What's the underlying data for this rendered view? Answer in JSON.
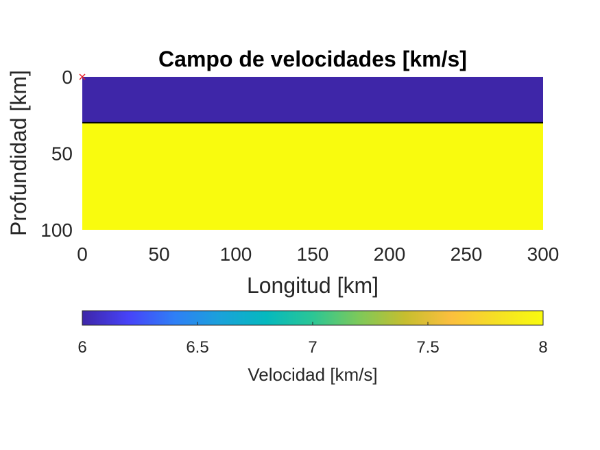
{
  "chart_data": {
    "type": "heatmap",
    "title": "Campo de velocidades [km/s]",
    "xlabel": "Longitud [km]",
    "ylabel": "Profundidad [km]",
    "xlim": [
      0,
      300
    ],
    "ylim": [
      0,
      100
    ],
    "y_reversed": true,
    "xticks": [
      0,
      50,
      100,
      150,
      200,
      250,
      300
    ],
    "xtick_labels": [
      "0",
      "50",
      "100",
      "150",
      "200",
      "250",
      "300"
    ],
    "yticks": [
      0,
      50,
      100
    ],
    "ytick_labels": [
      "0",
      "50",
      "100"
    ],
    "layers": [
      {
        "depth_top": 0,
        "depth_bottom": 30,
        "velocity": 6
      },
      {
        "depth_top": 30,
        "depth_bottom": 100,
        "velocity": 8
      }
    ],
    "interface_depth": 30,
    "source_marker": {
      "x": 0,
      "y": 0,
      "symbol": "×",
      "color": "#e8202a"
    },
    "colormap": "parula",
    "colormap_stops": [
      "#3e26a8",
      "#4743f8",
      "#2f7ff6",
      "#1aa2da",
      "#05b9be",
      "#2bc695",
      "#7dc95a",
      "#c6be2f",
      "#fbbf3e",
      "#f5e024",
      "#f9fb0e"
    ],
    "colorbar": {
      "label": "Velocidad [km/s]",
      "range": [
        6,
        8
      ],
      "ticks": [
        6,
        6.5,
        7,
        7.5,
        8
      ],
      "tick_labels": [
        "6",
        "6.5",
        "7",
        "7.5",
        "8"
      ],
      "location": "bottom"
    },
    "grid": false
  }
}
